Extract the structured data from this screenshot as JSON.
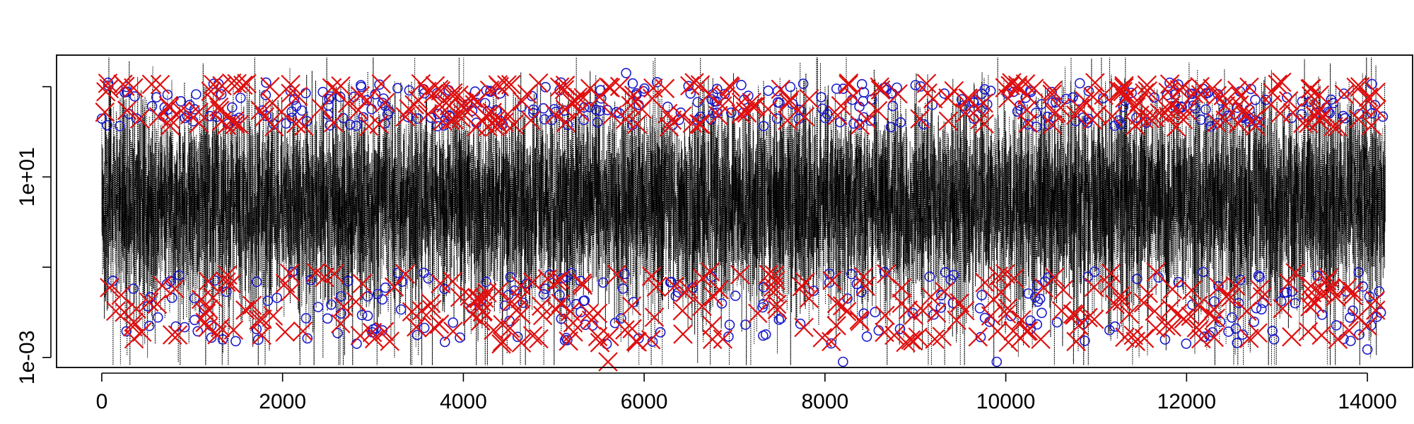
{
  "chart_data": {
    "type": "line",
    "title": "",
    "xlabel": "",
    "ylabel": "",
    "x_range": [
      -500,
      14500
    ],
    "y_scale": "log10",
    "y_range": [
      0.0006,
      5000
    ],
    "grid": false,
    "legend": "none",
    "x_ticks": [
      0,
      2000,
      4000,
      6000,
      8000,
      10000,
      12000,
      14000
    ],
    "x_tick_labels": [
      "0",
      "2000",
      "4000",
      "6000",
      "8000",
      "10000",
      "12000",
      "14000"
    ],
    "y_ticks": [
      0.001,
      0.1,
      10,
      1000
    ],
    "y_tick_labels": [
      "1e-03",
      "",
      "1e+01",
      ""
    ],
    "series": [
      {
        "kind": "dotted-line",
        "color": "#000000",
        "n_points": 14200,
        "typical_range": [
          0.05,
          200
        ]
      },
      {
        "kind": "circle-markers",
        "color": "#1a1acc",
        "highlight_points": [
          {
            "x": 5800,
            "y": 2000
          },
          {
            "x": 4300,
            "y": 800
          },
          {
            "x": 8200,
            "y": 0.0008
          },
          {
            "x": 9900,
            "y": 0.0008
          },
          {
            "x": 14000,
            "y": 0.0015
          }
        ]
      },
      {
        "kind": "x-markers",
        "color": "#e01010",
        "highlight_points": [
          {
            "x": 5600,
            "y": 0.0008
          },
          {
            "x": 3500,
            "y": 500
          },
          {
            "x": 14000,
            "y": 0.005
          }
        ]
      }
    ]
  }
}
